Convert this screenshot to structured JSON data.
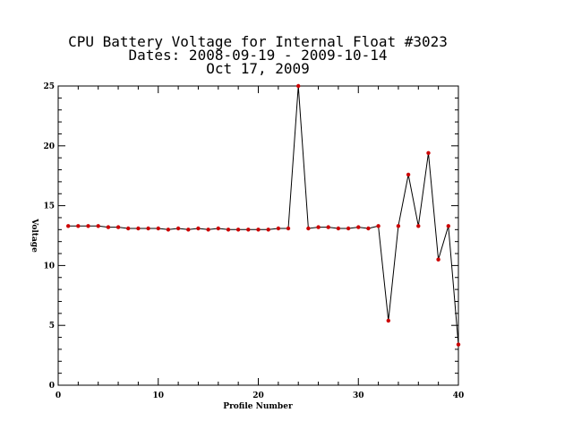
{
  "chart_data": {
    "type": "line",
    "title_lines": [
      "CPU Battery Voltage for Internal Float #3023",
      "Dates:  2008-09-19 -  2009-10-14",
      "Oct 17, 2009"
    ],
    "xlabel": "Profile Number",
    "ylabel": "Voltage",
    "xlim": [
      0,
      40
    ],
    "ylim": [
      0,
      25
    ],
    "xticks": [
      0,
      10,
      20,
      30,
      40
    ],
    "yticks": [
      0,
      5,
      10,
      15,
      20,
      25
    ],
    "x_minor_step": 2,
    "y_minor_step": 1,
    "grid": false,
    "line_color": "#000000",
    "marker_color": "#cc0000",
    "series": [
      {
        "x": [
          1,
          2,
          3,
          4,
          5,
          6,
          7,
          8,
          9,
          10,
          11,
          12,
          13,
          14,
          15,
          16,
          17,
          18,
          19,
          20,
          21,
          22,
          23,
          24,
          25,
          26,
          27,
          28,
          29,
          30,
          31,
          32,
          33,
          34,
          35,
          36,
          37,
          38,
          39,
          40
        ],
        "values": [
          13.3,
          13.3,
          13.3,
          13.3,
          13.2,
          13.2,
          13.1,
          13.1,
          13.1,
          13.1,
          13.0,
          13.1,
          13.0,
          13.1,
          13.0,
          13.1,
          13.0,
          13.0,
          13.0,
          13.0,
          13.0,
          13.1,
          13.1,
          25.0,
          13.1,
          13.2,
          13.2,
          13.1,
          13.1,
          13.2,
          13.1,
          13.3,
          5.4,
          13.3,
          17.6,
          13.3,
          19.4,
          10.5,
          13.3,
          3.4
        ]
      }
    ]
  }
}
